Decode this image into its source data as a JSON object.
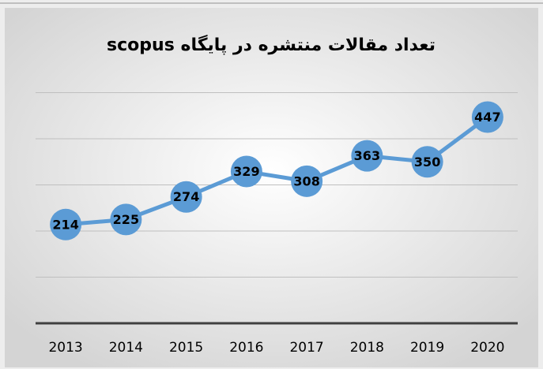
{
  "chart_data": {
    "type": "line",
    "title": "تعداد مقالات منتشره در پایگاه scopus",
    "categories": [
      "2013",
      "2014",
      "2015",
      "2016",
      "2017",
      "2018",
      "2019",
      "2020"
    ],
    "series": [
      {
        "name": "scopus",
        "color": "#5b9bd5",
        "values": [
          214,
          225,
          274,
          329,
          308,
          363,
          350,
          447
        ]
      }
    ],
    "ylim": [
      0,
      500
    ],
    "yticks": [
      0,
      100,
      200,
      300,
      400,
      500
    ],
    "grid": true
  }
}
